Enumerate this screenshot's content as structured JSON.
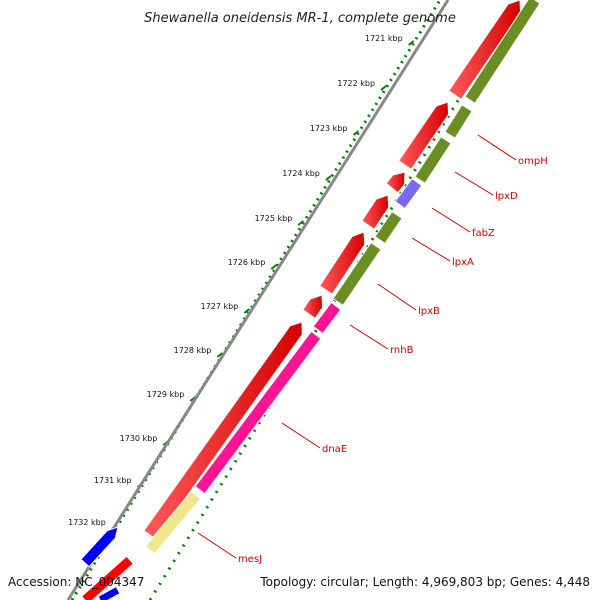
{
  "title": "Shewanella oneidensis MR-1, complete genome",
  "ticks": [
    "1721 kbp",
    "1722 kbp",
    "1723 kbp",
    "1724 kbp",
    "1725 kbp",
    "1726 kbp",
    "1727 kbp",
    "1728 kbp",
    "1729 kbp",
    "1730 kbp",
    "1731 kbp",
    "1732 kbp"
  ],
  "genes": [
    "ompH",
    "lpxD",
    "fabZ",
    "lpxA",
    "lpxB",
    "rnhB",
    "dnaE",
    "mesJ"
  ],
  "footer": {
    "accession": "Accession: NC_004347",
    "topology": "Topology: circular; Length: 4,969,803 bp; Genes: 4,448"
  },
  "colors": {
    "cds_red": "#ff0000",
    "cog_olive": "#6b8e23",
    "cog_pink": "#ff1493",
    "cog_purple": "#7b68ee",
    "cog_yellow": "#f0e68c",
    "blue": "#0000ff",
    "dots": "#008000",
    "label": "#cc0000",
    "backbone": "#888888"
  }
}
